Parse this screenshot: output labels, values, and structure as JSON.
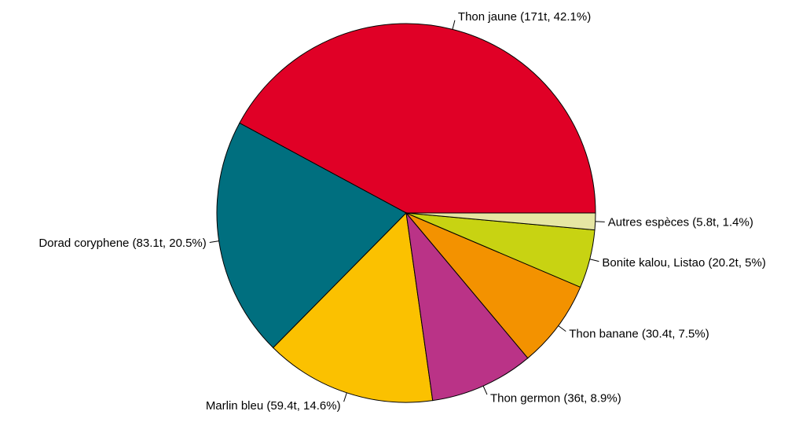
{
  "chart_data": {
    "type": "pie",
    "title": "",
    "start_angle_deg": 0,
    "direction": "counterclockwise",
    "legend": "none",
    "slices": [
      {
        "name": "Thon jaune",
        "value": 171,
        "percent": 42.1,
        "label": "Thon jaune (171t, 42.1%)",
        "color": "#E00026"
      },
      {
        "name": "Dorad coryphene",
        "value": 83.1,
        "percent": 20.5,
        "label": "Dorad coryphene (83.1t, 20.5%)",
        "color": "#006F7F"
      },
      {
        "name": "Marlin bleu",
        "value": 59.4,
        "percent": 14.6,
        "label": "Marlin bleu (59.4t, 14.6%)",
        "color": "#FBC100"
      },
      {
        "name": "Thon germon",
        "value": 36,
        "percent": 8.9,
        "label": "Thon germon (36t, 8.9%)",
        "color": "#BA3387"
      },
      {
        "name": "Thon banane",
        "value": 30.4,
        "percent": 7.5,
        "label": "Thon banane (30.4t, 7.5%)",
        "color": "#F39200"
      },
      {
        "name": "Bonite kalou, Listao",
        "value": 20.2,
        "percent": 5,
        "label": "Bonite kalou, Listao (20.2t, 5%)",
        "color": "#C8D312"
      },
      {
        "name": "Autres espèces",
        "value": 5.8,
        "percent": 1.4,
        "label": "Autres espèces (5.8t, 1.4%)",
        "color": "#E6E6A4"
      }
    ]
  }
}
